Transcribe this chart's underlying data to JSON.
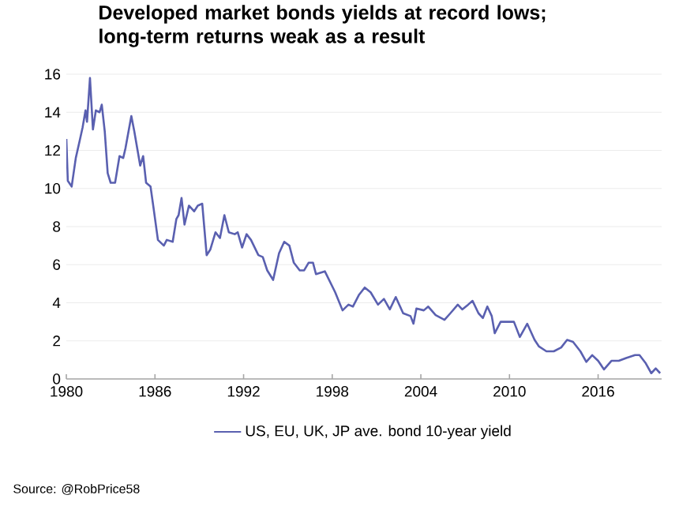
{
  "chart_data": {
    "type": "line",
    "title": "Developed market bonds yields at record lows; long-term returns weak as a result",
    "annotations": [
      "Source: @RobPrice58"
    ],
    "series": [
      {
        "name": "US, EU, UK, JP ave. bond 10-year yield",
        "color": "#5a60b0",
        "x": [
          1980.0,
          1980.1,
          1980.36,
          1980.64,
          1980.9,
          1981.1,
          1981.3,
          1981.4,
          1981.6,
          1981.8,
          1982.0,
          1982.25,
          1982.4,
          1982.6,
          1982.8,
          1983.0,
          1983.3,
          1983.6,
          1983.85,
          1984.0,
          1984.4,
          1984.6,
          1984.8,
          1985.0,
          1985.2,
          1985.4,
          1985.7,
          1985.9,
          1986.2,
          1986.6,
          1986.8,
          1987.2,
          1987.45,
          1987.6,
          1987.8,
          1988.0,
          1988.3,
          1988.65,
          1988.9,
          1989.2,
          1989.5,
          1989.75,
          1990.1,
          1990.4,
          1990.7,
          1991.0,
          1991.4,
          1991.6,
          1991.9,
          1992.2,
          1992.5,
          1993.0,
          1993.3,
          1993.6,
          1994.0,
          1994.4,
          1994.75,
          1995.1,
          1995.4,
          1995.8,
          1996.1,
          1996.4,
          1996.7,
          1996.9,
          1997.5,
          1998.2,
          1998.7,
          1999.1,
          1999.4,
          1999.8,
          2000.2,
          2000.6,
          2001.1,
          2001.5,
          2001.9,
          2002.3,
          2002.8,
          2003.3,
          2003.5,
          2003.7,
          2004.2,
          2004.5,
          2005.0,
          2005.6,
          2006.0,
          2006.5,
          2006.8,
          2007.2,
          2007.5,
          2007.9,
          2008.2,
          2008.5,
          2008.8,
          2009.0,
          2009.4,
          2009.8,
          2010.3,
          2010.7,
          2011.2,
          2011.7,
          2012.0,
          2012.5,
          2013.0,
          2013.5,
          2013.9,
          2014.3,
          2014.8,
          2015.2,
          2015.6,
          2016.0,
          2016.4,
          2016.9,
          2017.4,
          2017.9,
          2018.5,
          2018.8,
          2019.2,
          2019.6,
          2019.9,
          2020.2
        ],
        "values": [
          12.6,
          10.4,
          10.1,
          11.6,
          12.5,
          13.2,
          14.1,
          13.5,
          15.8,
          13.1,
          14.1,
          14.0,
          14.4,
          13.0,
          10.8,
          10.3,
          10.3,
          11.7,
          11.6,
          12.1,
          13.8,
          13.0,
          12.1,
          11.2,
          11.7,
          10.3,
          10.1,
          9.0,
          7.3,
          7.0,
          7.3,
          7.2,
          8.4,
          8.6,
          9.5,
          8.1,
          9.1,
          8.8,
          9.1,
          9.2,
          6.5,
          6.8,
          7.7,
          7.4,
          8.6,
          7.7,
          7.6,
          7.7,
          6.9,
          7.6,
          7.3,
          6.5,
          6.4,
          5.7,
          5.2,
          6.6,
          7.2,
          7.0,
          6.1,
          5.7,
          5.7,
          6.1,
          6.1,
          5.5,
          5.65,
          4.55,
          3.6,
          3.9,
          3.8,
          4.4,
          4.8,
          4.55,
          3.9,
          4.2,
          3.65,
          4.3,
          3.45,
          3.3,
          2.9,
          3.7,
          3.6,
          3.8,
          3.35,
          3.1,
          3.45,
          3.9,
          3.65,
          3.9,
          4.1,
          3.45,
          3.2,
          3.8,
          3.3,
          2.4,
          3.0,
          3.0,
          3.0,
          2.2,
          2.9,
          2.05,
          1.7,
          1.45,
          1.45,
          1.65,
          2.05,
          1.95,
          1.45,
          0.9,
          1.25,
          0.95,
          0.5,
          0.95,
          0.95,
          1.1,
          1.25,
          1.25,
          0.85,
          0.3,
          0.55,
          0.3
        ]
      }
    ],
    "xlim": [
      1980,
      2020.3
    ],
    "xticks": [
      1980,
      1986,
      1992,
      1998,
      2004,
      2010,
      2016
    ],
    "ylim": [
      0,
      16
    ],
    "yticks": [
      0,
      2,
      4,
      6,
      8,
      10,
      12,
      14,
      16
    ],
    "grid": "y",
    "legend": "bottom"
  }
}
